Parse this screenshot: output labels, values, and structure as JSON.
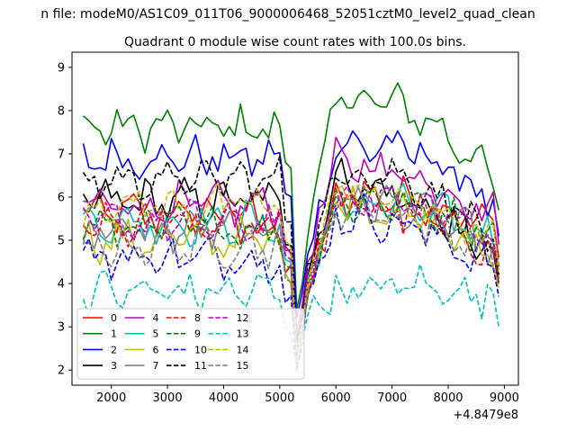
{
  "chart_data": {
    "type": "line",
    "suptitle": "n file: modeM0/AS1C09_011T06_9000006468_52051cztM0_level2_quad_clean",
    "title": "Quadrant 0 module wise count rates with 100.0s bins.",
    "xlabel": "",
    "ylabel": "",
    "x_offset_label": "+4.8479e8",
    "xlim": [
      1300,
      9250
    ],
    "ylim": [
      1.65,
      9.35
    ],
    "xticks": [
      2000,
      3000,
      4000,
      5000,
      6000,
      7000,
      8000,
      9000
    ],
    "yticks": [
      2,
      3,
      4,
      5,
      6,
      7,
      8,
      9
    ],
    "grid": false,
    "legend": {
      "position": "lower-left",
      "ncol": 5
    },
    "x_start": 1500,
    "x_step": 100,
    "dip_index": 38,
    "gap_before_index": 36,
    "recovery_index": 45,
    "series": [
      {
        "name": "0",
        "color": "#ff0000",
        "dash": "solid",
        "pre": 5.6,
        "post": 6.0,
        "end": 5.2,
        "dip": 2.4
      },
      {
        "name": "1",
        "color": "#008000",
        "dash": "solid",
        "pre": 7.6,
        "post": 8.3,
        "end": 6.3,
        "dip": 3.4
      },
      {
        "name": "2",
        "color": "#0000ff",
        "dash": "solid",
        "pre": 6.9,
        "post": 7.1,
        "end": 5.7,
        "dip": 3.2
      },
      {
        "name": "3",
        "color": "#000000",
        "dash": "solid",
        "pre": 5.9,
        "post": 6.4,
        "end": 4.6,
        "dip": 2.7
      },
      {
        "name": "4",
        "color": "#bf00bf",
        "dash": "solid",
        "pre": 5.8,
        "post": 6.8,
        "end": 5.5,
        "dip": 2.9
      },
      {
        "name": "5",
        "color": "#00bfbf",
        "dash": "solid",
        "pre": 5.4,
        "post": 5.8,
        "end": 5.0,
        "dip": 2.5
      },
      {
        "name": "6",
        "color": "#bfbf00",
        "dash": "solid",
        "pre": 5.0,
        "post": 5.9,
        "end": 4.5,
        "dip": 2.3
      },
      {
        "name": "7",
        "color": "#808080",
        "dash": "solid",
        "pre": 5.2,
        "post": 5.9,
        "end": 4.8,
        "dip": 2.3
      },
      {
        "name": "8",
        "color": "#ff0000",
        "dash": "dashed",
        "pre": 5.3,
        "post": 5.8,
        "end": 4.7,
        "dip": 2.3
      },
      {
        "name": "9",
        "color": "#008000",
        "dash": "dashed",
        "pre": 5.3,
        "post": 5.9,
        "end": 5.0,
        "dip": 2.4
      },
      {
        "name": "10",
        "color": "#0000ff",
        "dash": "dashed",
        "pre": 4.6,
        "post": 5.6,
        "end": 4.3,
        "dip": 2.0
      },
      {
        "name": "11",
        "color": "#000000",
        "dash": "dashed",
        "pre": 6.4,
        "post": 6.6,
        "end": 4.8,
        "dip": 2.6
      },
      {
        "name": "12",
        "color": "#bf00bf",
        "dash": "dashed",
        "pre": 5.4,
        "post": 6.0,
        "end": 5.0,
        "dip": 2.4
      },
      {
        "name": "13",
        "color": "#00bfbf",
        "dash": "dashed",
        "pre": 3.8,
        "post": 3.7,
        "end": 3.6,
        "dip": 2.1
      },
      {
        "name": "14",
        "color": "#bfbf00",
        "dash": "dashed",
        "pre": 5.8,
        "post": 6.2,
        "end": 4.9,
        "dip": 2.4
      },
      {
        "name": "15",
        "color": "#808080",
        "dash": "dashed",
        "pre": 4.9,
        "post": 5.8,
        "end": 4.6,
        "dip": 2.2
      }
    ]
  }
}
